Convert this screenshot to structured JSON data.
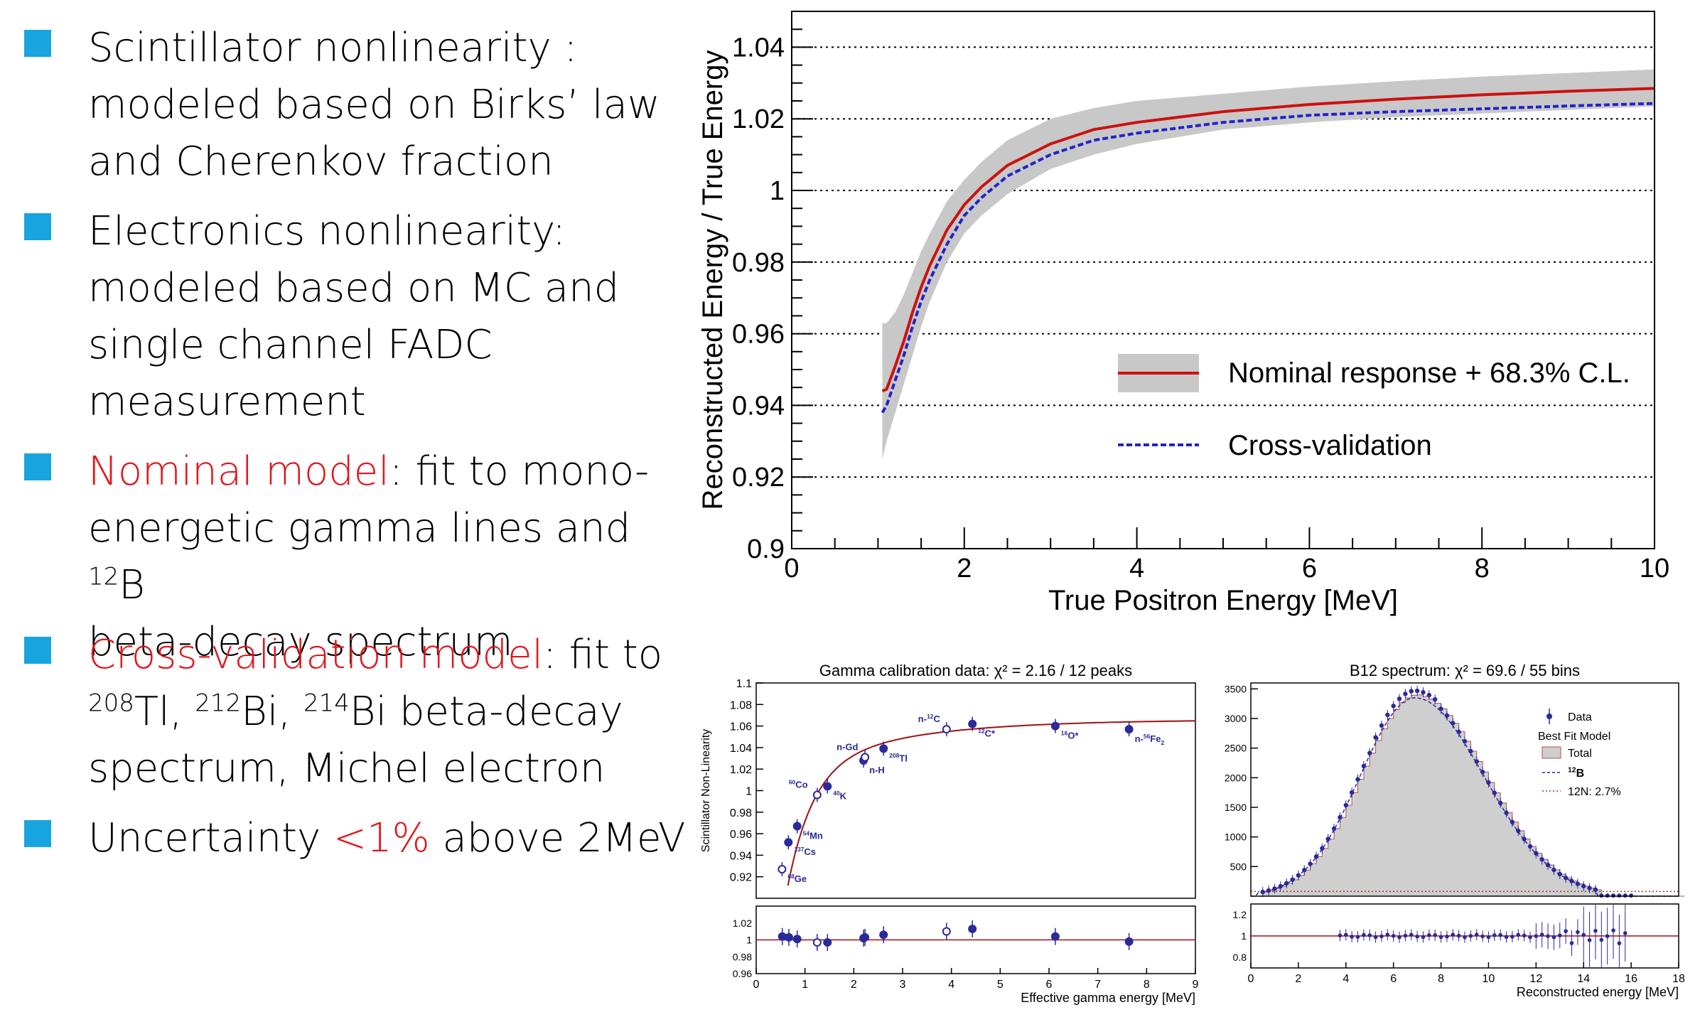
{
  "bullets": [
    {
      "head": "Scintillator nonlinearity",
      "head_style": "black",
      "rest1": " :",
      "line2": "modeled based on Birks’ law",
      "line3": "and Cherenkov fraction"
    },
    {
      "head": "Electronics nonlinearity",
      "head_style": "black",
      "rest1": ":",
      "line2": "modeled based on MC and",
      "line3": "single channel FADC",
      "line4": "measurement"
    },
    {
      "head": "Nominal model",
      "head_style": "red",
      "rest1": ": fit to mono-",
      "line2a": "energetic gamma lines and ",
      "line2sup": "12",
      "line2b": "B",
      "line3": "beta-decay spectrum"
    },
    {
      "head": "Cross-validation model",
      "head_style": "red",
      "rest1": ": fit to",
      "l2s1": "208",
      "l2t1": "Tl, ",
      "l2s2": "212",
      "l2t2": "Bi, ",
      "l2s3": "214",
      "l2t3": "Bi beta-decay",
      "line3": "spectrum, Michel electron"
    },
    {
      "pre": "Uncertainty ",
      "red": "<1%",
      "post": " above 2MeV"
    }
  ],
  "chart_data": [
    {
      "type": "line",
      "title": "",
      "xlabel": "True Positron Energy [MeV]",
      "ylabel": "Reconstructed Energy / True Energy",
      "xlim": [
        0,
        10
      ],
      "ylim": [
        0.9,
        1.05
      ],
      "xticks": [
        "0",
        "2",
        "4",
        "6",
        "8",
        "10"
      ],
      "yticks": [
        "0.9",
        "0.92",
        "0.94",
        "0.96",
        "0.98",
        "1",
        "1.02",
        "1.04"
      ],
      "grid": "horizontal dotted",
      "legend_position": "right",
      "series": [
        {
          "name": "Nominal response + 68.3% C.L.",
          "color": "#cc1111",
          "x": [
            1.05,
            1.1,
            1.2,
            1.3,
            1.4,
            1.5,
            1.6,
            1.8,
            2.0,
            2.2,
            2.5,
            3.0,
            3.5,
            4.0,
            5.0,
            6.0,
            7.0,
            8.0,
            9.0,
            10.0
          ],
          "y": [
            0.944,
            0.9445,
            0.951,
            0.958,
            0.966,
            0.973,
            0.979,
            0.989,
            0.996,
            1.001,
            1.007,
            1.013,
            1.017,
            1.019,
            1.022,
            1.024,
            1.0255,
            1.0267,
            1.0277,
            1.0285
          ],
          "band_lo": [
            0.925,
            0.93,
            0.938,
            0.946,
            0.954,
            0.962,
            0.969,
            0.98,
            0.988,
            0.993,
            0.999,
            1.006,
            1.01,
            1.013,
            1.017,
            1.019,
            1.0205,
            1.0215,
            1.0225,
            1.0235
          ],
          "band_hi": [
            0.963,
            0.963,
            0.966,
            0.971,
            0.977,
            0.983,
            0.988,
            0.997,
            1.003,
            1.008,
            1.014,
            1.02,
            1.023,
            1.025,
            1.027,
            1.029,
            1.0305,
            1.0318,
            1.0328,
            1.0338
          ]
        },
        {
          "name": "Cross-validation",
          "color": "#2222cc",
          "dashed": true,
          "x": [
            1.05,
            1.1,
            1.2,
            1.3,
            1.4,
            1.5,
            1.6,
            1.8,
            2.0,
            2.2,
            2.5,
            3.0,
            3.5,
            4.0,
            5.0,
            6.0,
            7.0,
            8.0,
            9.0,
            10.0
          ],
          "y": [
            0.938,
            0.94,
            0.947,
            0.954,
            0.962,
            0.969,
            0.975,
            0.985,
            0.993,
            0.998,
            1.004,
            1.01,
            1.014,
            1.016,
            1.019,
            1.021,
            1.022,
            1.0228,
            1.0236,
            1.0243
          ]
        }
      ]
    },
    {
      "type": "scatter",
      "title": "Gamma calibration data: χ² = 2.16 / 12 peaks",
      "xlabel": "Effective gamma energy [MeV]",
      "ylabel": "Scintillator Non-Linearity",
      "xlim": [
        0,
        9
      ],
      "ylim": [
        0.9,
        1.1
      ],
      "xticks": [
        "0",
        "1",
        "2",
        "3",
        "4",
        "5",
        "6",
        "7",
        "8",
        "9"
      ],
      "yticks": [
        "0.92",
        "0.94",
        "0.96",
        "0.98",
        "1",
        "1.02",
        "1.04",
        "1.06",
        "1.08",
        "1.1"
      ],
      "points": [
        {
          "x": 0.53,
          "y": 0.927,
          "label": "68Ge",
          "open": true
        },
        {
          "x": 0.66,
          "y": 0.952,
          "label": "137Cs",
          "open": false
        },
        {
          "x": 0.84,
          "y": 0.967,
          "label": "54Mn",
          "open": false
        },
        {
          "x": 1.25,
          "y": 0.996,
          "label": "60Co",
          "open": true
        },
        {
          "x": 1.46,
          "y": 1.004,
          "label": "40K",
          "open": false
        },
        {
          "x": 2.2,
          "y": 1.028,
          "label": "n-H",
          "open": false
        },
        {
          "x": 2.23,
          "y": 1.031,
          "label": "n-Gd",
          "open": true
        },
        {
          "x": 2.61,
          "y": 1.039,
          "label": "208Tl",
          "open": false
        },
        {
          "x": 3.9,
          "y": 1.057,
          "label": "n-12C",
          "open": true
        },
        {
          "x": 4.43,
          "y": 1.062,
          "label": "12C*",
          "open": false
        },
        {
          "x": 6.13,
          "y": 1.06,
          "label": "16O*",
          "open": false
        },
        {
          "x": 7.64,
          "y": 1.057,
          "label": "n-56Fe2",
          "open": false
        }
      ],
      "residual_yticks": [
        "0.96",
        "0.98",
        "1",
        "1.02"
      ],
      "residuals": [
        0.535,
        0.67,
        0.84,
        1.25,
        1.46,
        2.2,
        2.23,
        2.61,
        3.9,
        4.43,
        6.13,
        7.64
      ],
      "residual_values": [
        1.004,
        1.003,
        1.001,
        0.997,
        0.997,
        1.002,
        1.003,
        1.006,
        1.01,
        1.013,
        1.004,
        0.998
      ]
    },
    {
      "type": "bar",
      "title": "B12 spectrum: χ² = 69.6 / 55 bins",
      "xlabel": "Reconstructed energy [MeV]",
      "xlim": [
        0,
        18
      ],
      "ylim": [
        0,
        3600
      ],
      "xticks": [
        "0",
        "2",
        "4",
        "6",
        "8",
        "10",
        "12",
        "14",
        "16",
        "18"
      ],
      "yticks": [
        "500",
        "1000",
        "1500",
        "2000",
        "2500",
        "3000",
        "3500"
      ],
      "legend": [
        "Data",
        "Best Fit Model",
        "Total",
        "12B",
        "12N: 2.7%"
      ],
      "residual_yticks": [
        "0.8",
        "1",
        "1.2"
      ],
      "model": {
        "peak_x": 6.9,
        "peak_y": 3400,
        "sigma_left": 2.3,
        "sigma_right": 2.9,
        "start": 0.3,
        "end": 14.5
      },
      "data_peak": 3470
    }
  ]
}
